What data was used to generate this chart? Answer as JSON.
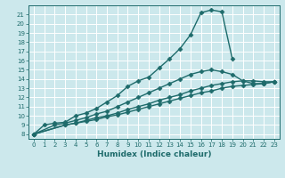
{
  "xlabel": "Humidex (Indice chaleur)",
  "xlim": [
    -0.5,
    23.5
  ],
  "ylim": [
    7.5,
    22.0
  ],
  "yticks": [
    8,
    9,
    10,
    11,
    12,
    13,
    14,
    15,
    16,
    17,
    18,
    19,
    20,
    21
  ],
  "xticks": [
    0,
    1,
    2,
    3,
    4,
    5,
    6,
    7,
    8,
    9,
    10,
    11,
    12,
    13,
    14,
    15,
    16,
    17,
    18,
    19,
    20,
    21,
    22,
    23
  ],
  "bg_color": "#cce8ec",
  "grid_color": "#ffffff",
  "line_color": "#1e6b6b",
  "curve1_x": [
    0,
    1,
    2,
    3,
    4,
    5,
    6,
    7,
    8,
    9,
    10,
    11,
    12,
    13,
    14,
    15,
    16,
    17,
    18,
    19
  ],
  "curve1_y": [
    8.0,
    9.0,
    9.2,
    9.3,
    10.0,
    10.3,
    10.8,
    11.5,
    12.2,
    13.2,
    13.8,
    14.2,
    15.2,
    16.2,
    17.3,
    18.8,
    21.2,
    21.5,
    21.3,
    16.2
  ],
  "curve2_x": [
    0,
    2,
    3,
    4,
    5,
    6,
    7,
    8,
    9,
    10,
    11,
    12,
    13,
    14,
    15,
    16,
    17,
    18,
    19,
    20,
    21,
    22,
    23
  ],
  "curve2_y": [
    8.0,
    9.0,
    9.2,
    9.5,
    9.8,
    10.2,
    10.5,
    11.0,
    11.5,
    12.0,
    12.5,
    13.0,
    13.5,
    14.0,
    14.5,
    14.8,
    15.0,
    14.8,
    14.5,
    13.8,
    13.5,
    13.5,
    13.7
  ],
  "curve3_x": [
    0,
    3,
    4,
    5,
    6,
    7,
    8,
    9,
    10,
    11,
    12,
    13,
    14,
    15,
    16,
    17,
    18,
    19,
    20,
    21,
    22,
    23
  ],
  "curve3_y": [
    8.0,
    9.0,
    9.2,
    9.5,
    9.8,
    10.0,
    10.3,
    10.7,
    11.0,
    11.3,
    11.7,
    12.0,
    12.3,
    12.7,
    13.0,
    13.3,
    13.5,
    13.7,
    13.8,
    13.8,
    13.7,
    13.7
  ],
  "curve4_x": [
    0,
    3,
    4,
    5,
    6,
    7,
    8,
    9,
    10,
    11,
    12,
    13,
    14,
    15,
    16,
    17,
    18,
    19,
    20,
    21,
    22,
    23
  ],
  "curve4_y": [
    8.0,
    9.0,
    9.2,
    9.4,
    9.6,
    9.9,
    10.1,
    10.4,
    10.7,
    11.0,
    11.3,
    11.6,
    11.9,
    12.2,
    12.5,
    12.7,
    13.0,
    13.2,
    13.3,
    13.4,
    13.5,
    13.7
  ]
}
